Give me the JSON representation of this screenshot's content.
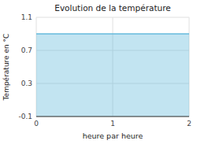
{
  "chart_data": {
    "type": "area",
    "title": "Evolution de la température",
    "x_label": "heure par heure",
    "y_label": "Température en °C",
    "x": [
      0,
      2
    ],
    "values": [
      0.9,
      0.9
    ],
    "color": "#66bbdd",
    "xlim": [
      0,
      2
    ],
    "ylim": [
      -0.1,
      1.1
    ],
    "xticks": [
      0,
      1,
      2
    ],
    "yticks": [
      -0.1,
      0.3,
      0.7,
      1.1
    ],
    "grid": true
  }
}
